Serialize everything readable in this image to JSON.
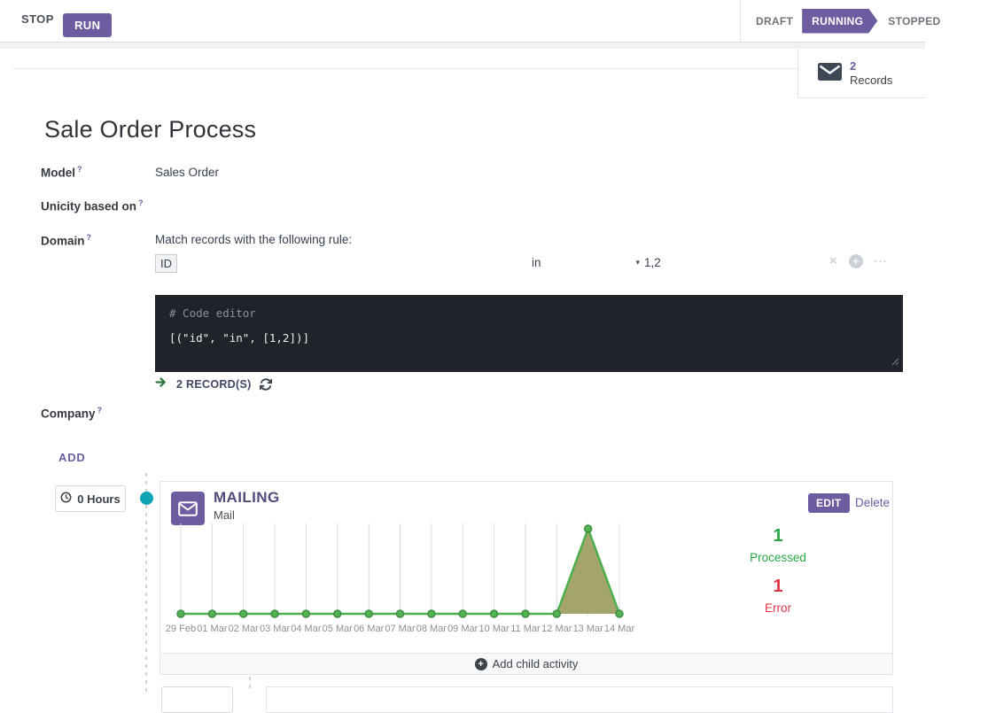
{
  "topbar": {
    "stop_label": "STOP",
    "run_label": "RUN",
    "statusbar": [
      {
        "label": "DRAFT",
        "active": false
      },
      {
        "label": "RUNNING",
        "active": true
      },
      {
        "label": "STOPPED",
        "active": false
      }
    ]
  },
  "button_box": {
    "records_count": "2",
    "records_label": "Records",
    "icon": "envelope-icon"
  },
  "sheet": {
    "title": "Sale Order Process",
    "model_label": "Model",
    "model_value": "Sales Order",
    "unicity_label": "Unicity based on",
    "domain_label": "Domain",
    "company_label": "Company",
    "help_marker": "?",
    "add_label": "ADD"
  },
  "domain": {
    "intro": "Match records with the following rule:",
    "field_tag": "ID",
    "operator": "in",
    "value": "1,2",
    "code_placeholder": "# Code editor",
    "code": "[(\"id\", \"in\", [1,2])]",
    "records_link": "2 RECORD(S)"
  },
  "workflow": {
    "trigger_delay": "0 Hours",
    "activity": {
      "title": "MAILING",
      "type": "Mail",
      "edit_label": "EDIT",
      "delete_label": "Delete",
      "processed": {
        "value": "1",
        "label": "Processed"
      },
      "error": {
        "value": "1",
        "label": "Error"
      },
      "add_child_label": "Add child activity"
    }
  },
  "chart_data": {
    "type": "area",
    "categories": [
      "29 Feb",
      "01 Mar",
      "02 Mar",
      "03 Mar",
      "04 Mar",
      "05 Mar",
      "06 Mar",
      "07 Mar",
      "08 Mar",
      "09 Mar",
      "10 Mar",
      "11 Mar",
      "12 Mar",
      "13 Mar",
      "14 Mar"
    ],
    "values": [
      0,
      0,
      0,
      0,
      0,
      0,
      0,
      0,
      0,
      0,
      0,
      0,
      0,
      1,
      0
    ],
    "title": "",
    "xlabel": "",
    "ylabel": "",
    "ylim": [
      0,
      1
    ],
    "grid": true,
    "legend_position": "none",
    "line_color": "#4cae4c",
    "marker_color": "#53b253",
    "marker_stroke": "#3c8f3f",
    "fill_color": "#a4a46d",
    "grid_color": "#d8dbde",
    "tick_color": "#8a9097"
  },
  "icons": {
    "records_button": "envelope-icon",
    "activity_type": "envelope-icon",
    "trigger": "clock-icon",
    "records_preview": "arrow-right-icon",
    "refresh": "refresh-icon",
    "operator_caret": {
      "name": "caret-down-icon",
      "glyph": "▾"
    },
    "rule_delete": {
      "name": "close-icon",
      "glyph": "×"
    },
    "rule_add": {
      "name": "plus-circle-icon",
      "glyph": "+"
    },
    "rule_more": {
      "name": "ellipsis-icon",
      "glyph": "···"
    },
    "add_child": {
      "name": "plus-circle-icon",
      "glyph": "+"
    }
  },
  "colors": {
    "primary": "#6d5ca0",
    "activity_title": "#564a7d",
    "success": "#28a745",
    "danger": "#dc3545",
    "node_dot": "#10a3b5",
    "editor_bg": "#20242a"
  }
}
